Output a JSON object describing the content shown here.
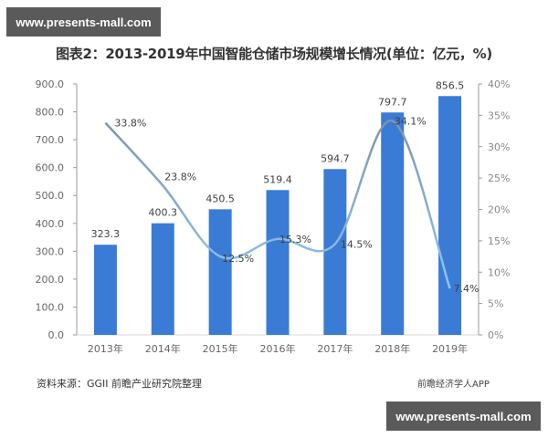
{
  "watermark": {
    "top_text": "www.presents-mall.com",
    "bottom_text": "www.presents-mall.com"
  },
  "title": "图表2：2013-2019年中国智能仓储市场规模增长情况(单位：亿元，%)",
  "footer": {
    "source": "资料来源：GGII 前瞻产业研究院整理",
    "credit": "前瞻经济学人APP"
  },
  "colors": {
    "bar": "#3a7bd5",
    "line_dark": "#7f93ad",
    "line_light": "#8dc6f2",
    "axis": "#999999",
    "text": "#595959"
  },
  "chart_data": {
    "type": "bar+line",
    "title": "图表2：2013-2019年中国智能仓储市场规模增长情况(单位：亿元，%)",
    "categories": [
      "2013年",
      "2014年",
      "2015年",
      "2016年",
      "2017年",
      "2018年",
      "2019年"
    ],
    "series": [
      {
        "name": "市场规模(亿元)",
        "type": "bar",
        "axis": "left",
        "values": [
          323.3,
          400.3,
          450.5,
          519.4,
          594.7,
          797.7,
          856.5
        ],
        "labels": [
          "323.3",
          "400.3",
          "450.5",
          "519.4",
          "594.7",
          "797.7",
          "856.5"
        ]
      },
      {
        "name": "增长率(%)",
        "type": "line",
        "axis": "right",
        "smooth": true,
        "values": [
          33.8,
          23.8,
          12.5,
          15.3,
          14.5,
          34.1,
          7.4
        ],
        "labels": [
          "33.8%",
          "23.8%",
          "12.5%",
          "15.3%",
          "14.5%",
          "34.1%",
          "7.4%"
        ]
      }
    ],
    "left_axis": {
      "ylim": [
        0,
        900
      ],
      "ticks": [
        "0.0",
        "100.0",
        "200.0",
        "300.0",
        "400.0",
        "500.0",
        "600.0",
        "700.0",
        "800.0",
        "900.0"
      ]
    },
    "right_axis": {
      "ylim": [
        0,
        40
      ],
      "ticks": [
        "0%",
        "5%",
        "10%",
        "15%",
        "20%",
        "25%",
        "30%",
        "35%",
        "40%"
      ]
    },
    "xlabel": "",
    "ylabel": "",
    "grid": false,
    "legend": "none"
  }
}
